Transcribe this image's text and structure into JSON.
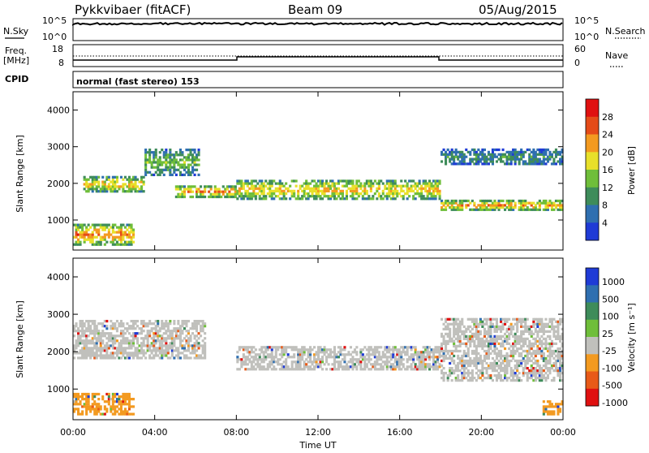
{
  "header": {
    "radar": "Pykkvibaer (fitACF)",
    "beam": "Beam 09",
    "date": "05/Aug/2015"
  },
  "noise_panel": {
    "left_label": "N.Sky",
    "right_label": "N.Search",
    "left_ticks": [
      "10^5",
      "10^0"
    ],
    "right_ticks": [
      "10^5",
      "10^0"
    ]
  },
  "freq_panel": {
    "left_label_1": "Freq.",
    "left_label_2": "[MHz]",
    "right_label": "Nave",
    "left_ticks": [
      "18",
      "8"
    ],
    "right_ticks": [
      "60",
      "0"
    ]
  },
  "cpid_panel": {
    "label": "CPID",
    "text": "normal (fast stereo) 153"
  },
  "time_axis": {
    "label": "Time UT",
    "ticks": [
      "00:00",
      "04:00",
      "08:00",
      "12:00",
      "16:00",
      "20:00",
      "00:00"
    ]
  },
  "colors": {
    "power_scale": [
      "#1f3bd6",
      "#2f6fb0",
      "#3e8c5a",
      "#6fbe3a",
      "#e8e02a",
      "#f39a20",
      "#e54b18",
      "#e01010"
    ],
    "velocity_scale": [
      "#1f3bd6",
      "#2f6fb0",
      "#3e8c5a",
      "#6fbe3a",
      "#c0c0bc",
      "#f39a20",
      "#e85a18",
      "#e01010"
    ]
  },
  "chart_data": [
    {
      "type": "heatmap",
      "title": "",
      "xlabel": "Time UT",
      "ylabel": "Slant Range [km]",
      "xlim": [
        0,
        24
      ],
      "ylim": [
        180,
        4500
      ],
      "yticks": [
        "1000",
        "2000",
        "3000",
        "4000"
      ],
      "colorbar": {
        "label": "Power [dB]",
        "ticks": [
          "4",
          "8",
          "12",
          "16",
          "20",
          "24",
          "28"
        ]
      },
      "bands": [
        {
          "t0": 0.5,
          "t1": 3.5,
          "r0": 1750,
          "r1": 2200,
          "level": 5
        },
        {
          "t0": 3.5,
          "t1": 6.2,
          "r0": 2200,
          "r1": 2950,
          "level": 3
        },
        {
          "t0": 5.0,
          "t1": 8.0,
          "r0": 1600,
          "r1": 1950,
          "level": 6
        },
        {
          "t0": 8.0,
          "t1": 18.0,
          "r0": 1550,
          "r1": 2100,
          "level": 5
        },
        {
          "t0": 18.0,
          "t1": 24.0,
          "r0": 1250,
          "r1": 1550,
          "level": 6
        },
        {
          "t0": 18.0,
          "t1": 24.0,
          "r0": 2500,
          "r1": 2950,
          "level": 2
        },
        {
          "t0": 0.0,
          "t1": 3.0,
          "r0": 300,
          "r1": 900,
          "level": 6
        }
      ]
    },
    {
      "type": "heatmap",
      "title": "",
      "xlabel": "Time UT",
      "ylabel": "Slant Range [km]",
      "xlim": [
        0,
        24
      ],
      "ylim": [
        180,
        4500
      ],
      "yticks": [
        "1000",
        "2000",
        "3000",
        "4000"
      ],
      "colorbar": {
        "label": "Velocity [m s⁻¹]",
        "ticks": [
          "1000",
          "500",
          "100",
          "25",
          "-25",
          "-100",
          "-500",
          "-1000"
        ]
      },
      "bands": [
        {
          "t0": 0.0,
          "t1": 6.5,
          "r0": 1800,
          "r1": 2850,
          "level": 4
        },
        {
          "t0": 8.0,
          "t1": 18.0,
          "r0": 1500,
          "r1": 2150,
          "level": 4
        },
        {
          "t0": 18.0,
          "t1": 24.0,
          "r0": 1200,
          "r1": 2900,
          "level": 4
        },
        {
          "t0": 0.0,
          "t1": 3.0,
          "r0": 300,
          "r1": 900,
          "level": 5
        },
        {
          "t0": 23.0,
          "t1": 24.0,
          "r0": 300,
          "r1": 700,
          "level": 5
        }
      ]
    }
  ]
}
